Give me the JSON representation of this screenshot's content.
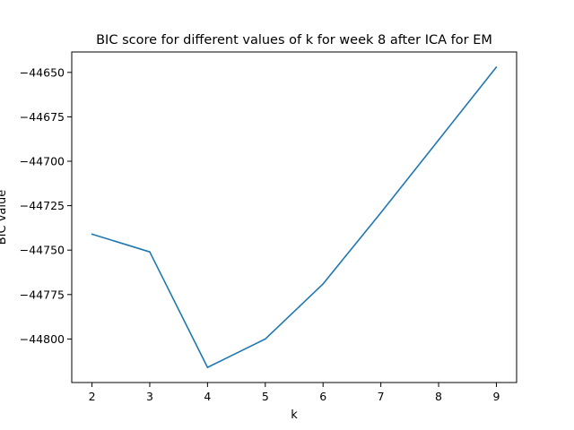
{
  "chart_data": {
    "type": "line",
    "title": "BIC score for different values of k for week 8 after ICA for EM",
    "xlabel": "k",
    "ylabel": "BIC value",
    "x": [
      2,
      3,
      4,
      5,
      6,
      7,
      8,
      9
    ],
    "series": [
      {
        "values": [
          -44741,
          -44751,
          -44816,
          -44800,
          -44769,
          -44729,
          -44688,
          -44647
        ],
        "color": "#1f77b4"
      }
    ],
    "xlim": [
      1.65,
      9.35
    ],
    "ylim": [
      -44824.5,
      -44638.5
    ],
    "xticks": [
      2,
      3,
      4,
      5,
      6,
      7,
      8,
      9
    ],
    "xtick_labels": [
      "2",
      "3",
      "4",
      "5",
      "6",
      "7",
      "8",
      "9"
    ],
    "yticks": [
      -44800,
      -44775,
      -44750,
      -44725,
      -44700,
      -44675,
      -44650
    ],
    "ytick_labels": [
      "−44800",
      "−44775",
      "−44750",
      "−44725",
      "−44700",
      "−44675",
      "−44650"
    ],
    "grid": false,
    "legend": false
  }
}
